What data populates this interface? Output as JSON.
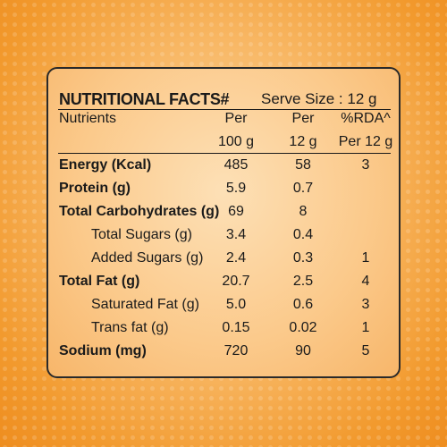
{
  "title": "NUTRITIONAL FACTS#",
  "serve_size": "Serve Size : 12 g",
  "headers": {
    "nutrients": "Nutrients",
    "per100_line1": "Per",
    "per100_line2": "100 g",
    "per12_line1": "Per",
    "per12_line2": "12 g",
    "rda_line1": "%RDA^",
    "rda_line2": "Per 12 g"
  },
  "rows": [
    {
      "label": "Energy (Kcal)",
      "per100": "485",
      "per12": "58",
      "rda": "3"
    },
    {
      "label": "Protein (g)",
      "per100": "5.9",
      "per12": "0.7",
      "rda": ""
    },
    {
      "label": "Total Carbohydrates (g)",
      "per100": "69",
      "per12": "8",
      "rda": ""
    },
    {
      "label": "Total Sugars (g)",
      "per100": "3.4",
      "per12": "0.4",
      "rda": ""
    },
    {
      "label": "Added Sugars (g)",
      "per100": "2.4",
      "per12": "0.3",
      "rda": "1"
    },
    {
      "label": "Total Fat (g)",
      "per100": "20.7",
      "per12": "2.5",
      "rda": "4"
    },
    {
      "label": "Saturated Fat (g)",
      "per100": "5.0",
      "per12": "0.6",
      "rda": "3"
    },
    {
      "label": "Trans fat (g)",
      "per100": "0.15",
      "per12": "0.02",
      "rda": "1"
    },
    {
      "label": "Sodium (mg)",
      "per100": "720",
      "per12": "90",
      "rda": "5"
    }
  ],
  "colors": {
    "background_orange": "#f29a2e",
    "panel_fill": "#fbc98a",
    "text": "#1a1a1a"
  }
}
